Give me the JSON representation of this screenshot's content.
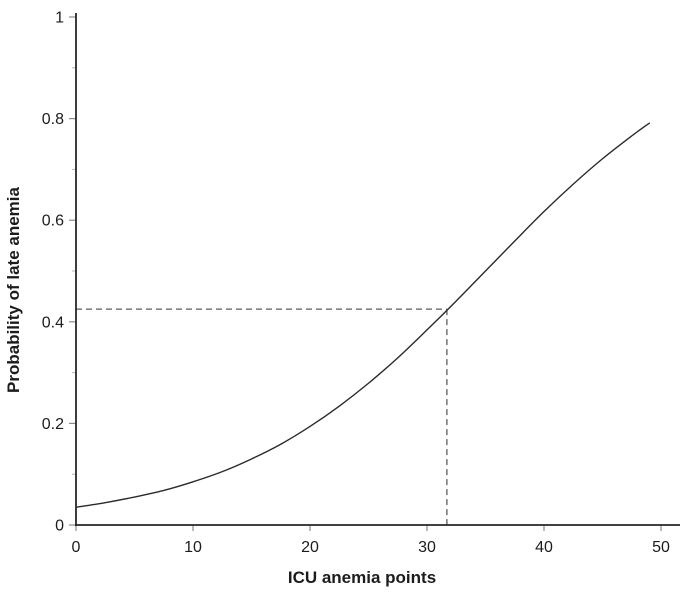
{
  "chart_data": {
    "type": "line",
    "title": "",
    "xlabel": "ICU anemia points",
    "ylabel": "Probability of late anemia",
    "xlim": [
      0,
      50
    ],
    "ylim": [
      0,
      1
    ],
    "grid": false,
    "legend": "none",
    "x_tick_values": [
      0,
      10,
      20,
      30,
      40,
      50
    ],
    "x_tick_labels": [
      "0",
      "10",
      "20",
      "30",
      "40",
      "50"
    ],
    "y_tick_values": [
      0,
      0.2,
      0.4,
      0.6,
      0.8,
      1
    ],
    "y_tick_labels": [
      "0",
      "0.2",
      "0.4",
      "0.6",
      "0.8",
      "1"
    ],
    "y_minor_tick_values": [
      0.1,
      0.3,
      0.5,
      0.7,
      0.9
    ],
    "series": [
      {
        "name": "probability-of-late-anemia-curve",
        "x": [
          0,
          2.5,
          5,
          7.5,
          10,
          12.5,
          15,
          17.5,
          20,
          22.5,
          25,
          27.5,
          30,
          32.5,
          35,
          37.5,
          40,
          42.5,
          45,
          47.5,
          49
        ],
        "y": [
          0.035,
          0.044,
          0.055,
          0.068,
          0.085,
          0.105,
          0.13,
          0.159,
          0.194,
          0.234,
          0.279,
          0.329,
          0.384,
          0.441,
          0.5,
          0.559,
          0.617,
          0.671,
          0.721,
          0.766,
          0.791
        ]
      }
    ],
    "reference_lines": {
      "x": 31.7,
      "y": 0.425,
      "style": "dashed-crosshair"
    },
    "colors": {
      "curve": "#2b2b2b",
      "axis": "#262626",
      "major_tick": "#8c8c8c",
      "minor_tick": "#b4b4b4",
      "dashed": "#5c5c5c",
      "text": "#1c1c1c",
      "background": "#ffffff"
    }
  }
}
